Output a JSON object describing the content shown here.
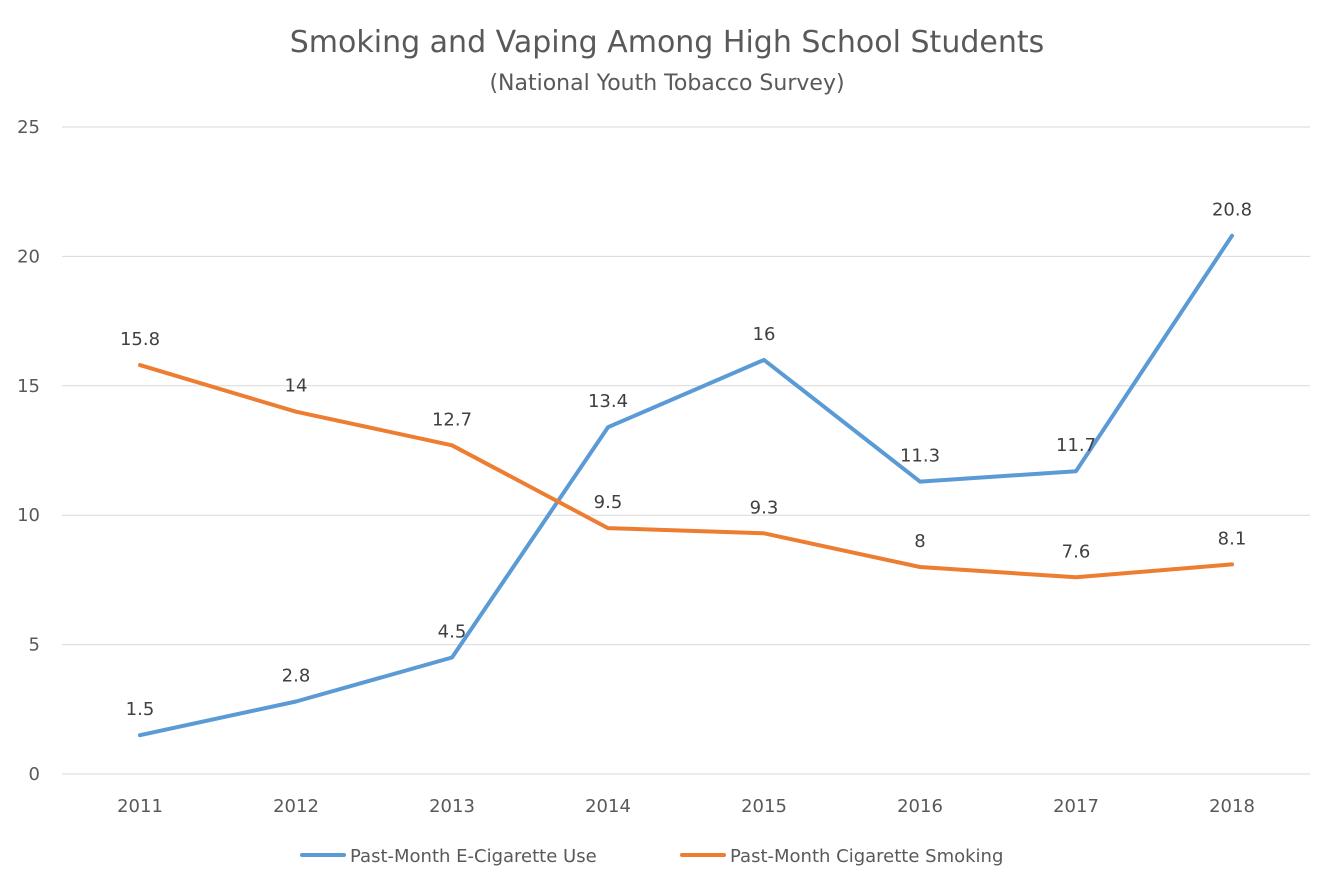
{
  "chart_data": {
    "type": "line",
    "title": "Smoking and Vaping Among High School Students",
    "subtitle": "(National Youth Tobacco Survey)",
    "xlabel": "",
    "ylabel": "",
    "categories": [
      "2011",
      "2012",
      "2013",
      "2014",
      "2015",
      "2016",
      "2017",
      "2018"
    ],
    "ylim": [
      0,
      25
    ],
    "yticks": [
      0,
      5,
      10,
      15,
      20,
      25
    ],
    "grid": true,
    "legend_position": "bottom",
    "data_labels": true,
    "series": [
      {
        "name": "Past-Month E-Cigarette Use",
        "color": "#5b9bd5",
        "values": [
          1.5,
          2.8,
          4.5,
          13.4,
          16,
          11.3,
          11.7,
          20.8
        ]
      },
      {
        "name": "Past-Month Cigarette Smoking",
        "color": "#ed7d31",
        "values": [
          15.8,
          14,
          12.7,
          9.5,
          9.3,
          8,
          7.6,
          8.1
        ]
      }
    ]
  }
}
